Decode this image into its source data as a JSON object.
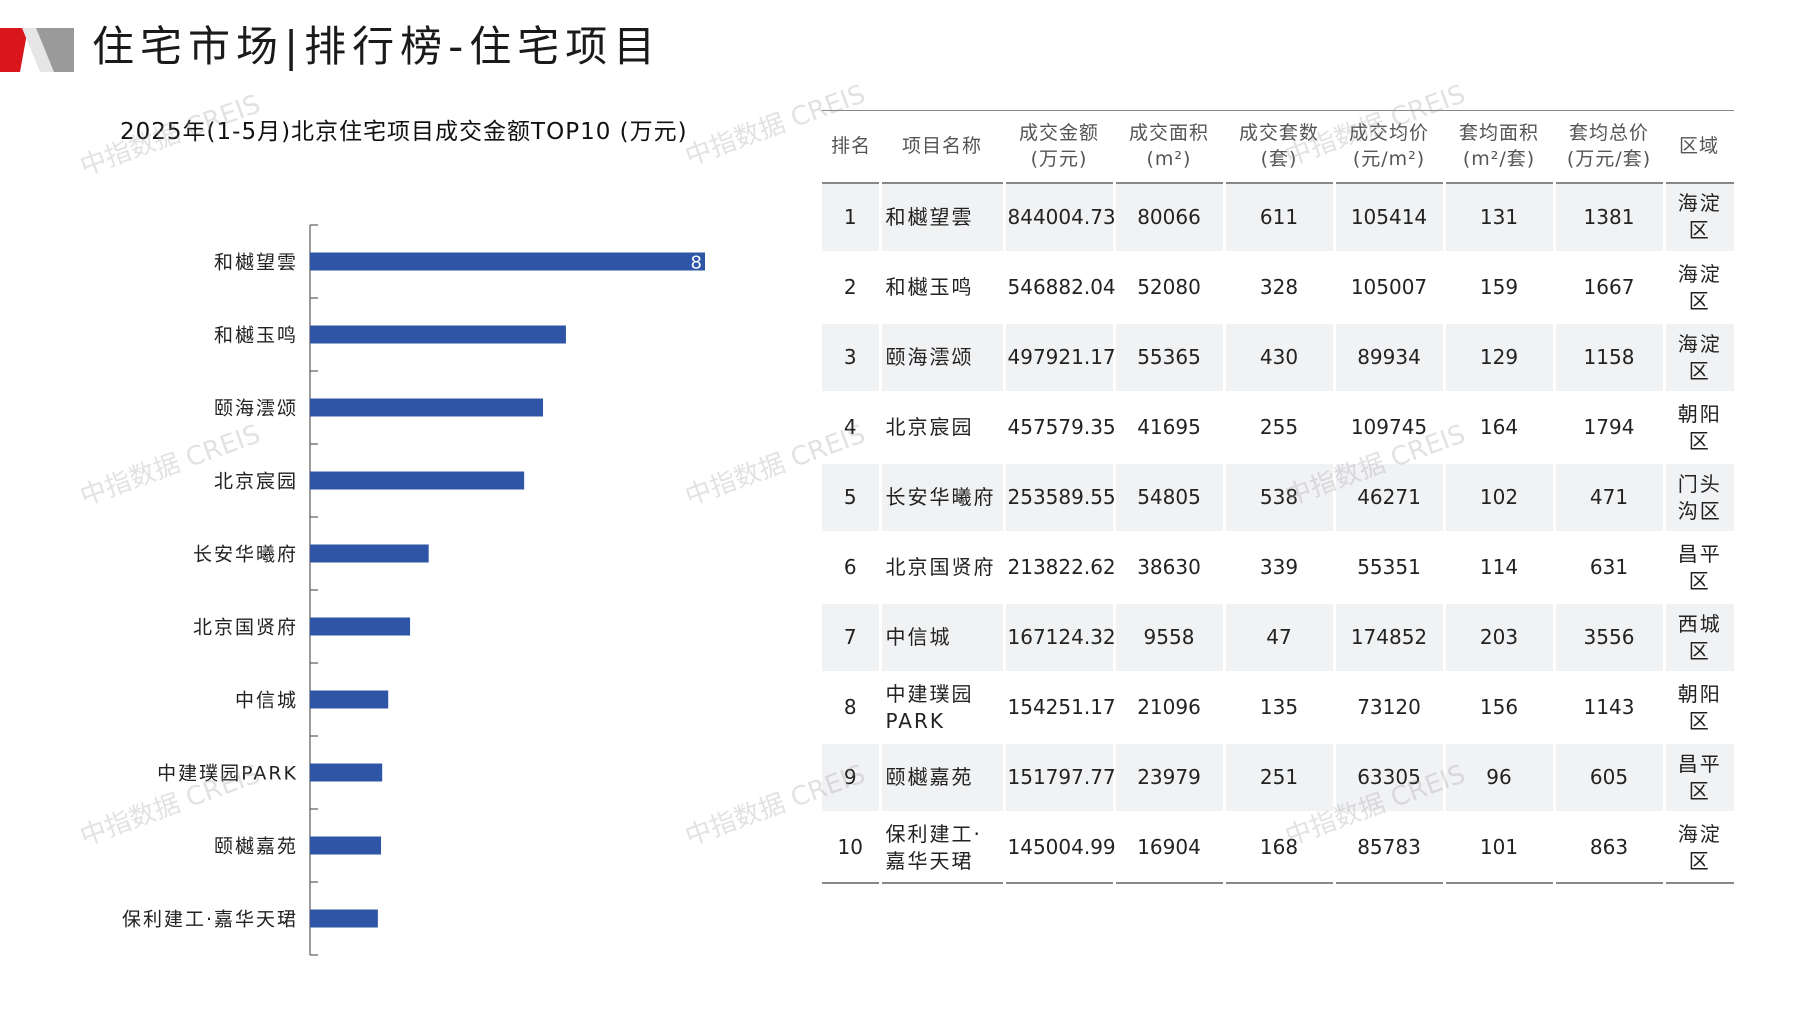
{
  "page": {
    "title": "住宅市场|排行榜-住宅项目",
    "watermark": "中指数据 CREIS"
  },
  "chart_data": {
    "type": "bar",
    "orientation": "horizontal",
    "title": "2025年(1-5月)北京住宅项目成交金额TOP10 (万元)",
    "categories": [
      "和樾望雲",
      "和樾玉鸣",
      "颐海澐颂",
      "北京宸园",
      "长安华曦府",
      "北京国贤府",
      "中信城",
      "中建璞园PARK",
      "颐樾嘉苑",
      "保利建工·嘉华天珺"
    ],
    "values": [
      844004.73,
      546882.04,
      497921.17,
      457579.35,
      253589.55,
      213822.62,
      167124.32,
      154251.17,
      151797.77,
      145004.99
    ],
    "visible_data_label": "8",
    "bar_color": "#2e55a6",
    "xlim": [
      0,
      844004.73
    ],
    "grid": false,
    "legend": "none"
  },
  "table": {
    "headers": [
      {
        "l1": "排名",
        "l2": ""
      },
      {
        "l1": "项目名称",
        "l2": ""
      },
      {
        "l1": "成交金额",
        "l2": "(万元)"
      },
      {
        "l1": "成交面积",
        "l2": "(m²)"
      },
      {
        "l1": "成交套数",
        "l2": "(套)"
      },
      {
        "l1": "成交均价",
        "l2": "(元/m²)"
      },
      {
        "l1": "套均面积",
        "l2": "(m²/套)"
      },
      {
        "l1": "套均总价",
        "l2": "(万元/套)"
      },
      {
        "l1": "区域",
        "l2": ""
      }
    ],
    "rows": [
      [
        "1",
        "和樾望雲",
        "844004.73",
        "80066",
        "611",
        "105414",
        "131",
        "1381",
        "海淀区"
      ],
      [
        "2",
        "和樾玉鸣",
        "546882.04",
        "52080",
        "328",
        "105007",
        "159",
        "1667",
        "海淀区"
      ],
      [
        "3",
        "颐海澐颂",
        "497921.17",
        "55365",
        "430",
        "89934",
        "129",
        "1158",
        "海淀区"
      ],
      [
        "4",
        "北京宸园",
        "457579.35",
        "41695",
        "255",
        "109745",
        "164",
        "1794",
        "朝阳区"
      ],
      [
        "5",
        "长安华曦府",
        "253589.55",
        "54805",
        "538",
        "46271",
        "102",
        "471",
        "门头沟区"
      ],
      [
        "6",
        "北京国贤府",
        "213822.62",
        "38630",
        "339",
        "55351",
        "114",
        "631",
        "昌平区"
      ],
      [
        "7",
        "中信城",
        "167124.32",
        "9558",
        "47",
        "174852",
        "203",
        "3556",
        "西城区"
      ],
      [
        "8",
        "中建璞园PARK",
        "154251.17",
        "21096",
        "135",
        "73120",
        "156",
        "1143",
        "朝阳区"
      ],
      [
        "9",
        "颐樾嘉苑",
        "151797.77",
        "23979",
        "251",
        "63305",
        "96",
        "605",
        "昌平区"
      ],
      [
        "10",
        "保利建工·嘉华天珺",
        "145004.99",
        "16904",
        "168",
        "85783",
        "101",
        "863",
        "海淀区"
      ]
    ]
  }
}
